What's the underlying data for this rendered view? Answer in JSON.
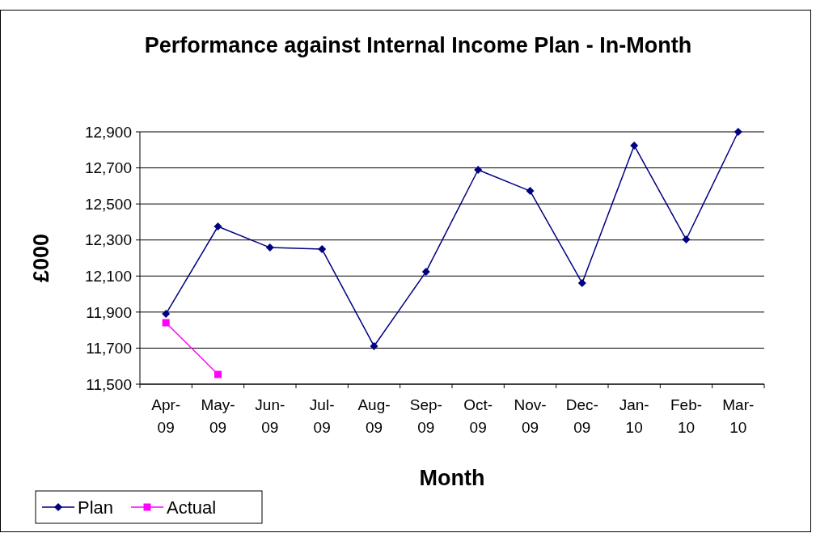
{
  "chart_data": {
    "type": "line",
    "title": "Performance against Internal Income Plan - In-Month",
    "xlabel": "Month",
    "ylabel": "£000",
    "categories": [
      "Apr-09",
      "May-09",
      "Jun-09",
      "Jul-09",
      "Aug-09",
      "Sep-09",
      "Oct-09",
      "Nov-09",
      "Dec-09",
      "Jan-10",
      "Feb-10",
      "Mar-10"
    ],
    "series": [
      {
        "name": "Plan",
        "color": "#000080",
        "marker": "diamond",
        "values": [
          11890,
          12375,
          12258,
          12249,
          11711,
          12124,
          12689,
          12572,
          12061,
          12824,
          12303,
          12900
        ]
      },
      {
        "name": "Actual",
        "color": "#ff00ff",
        "marker": "square",
        "values": [
          11841,
          11554,
          null,
          null,
          null,
          null,
          null,
          null,
          null,
          null,
          null,
          null
        ]
      }
    ],
    "ylim": [
      11500,
      12900
    ],
    "yticks": [
      {
        "value": 11500,
        "label": "11,500"
      },
      {
        "value": 11700,
        "label": "11,700"
      },
      {
        "value": 11900,
        "label": "11,900"
      },
      {
        "value": 12100,
        "label": "12,100"
      },
      {
        "value": 12300,
        "label": "12,300"
      },
      {
        "value": 12500,
        "label": "12,500"
      },
      {
        "value": 12700,
        "label": "12,700"
      },
      {
        "value": 12900,
        "label": "12,900"
      }
    ],
    "grid": "y",
    "legend": "bottom left"
  }
}
